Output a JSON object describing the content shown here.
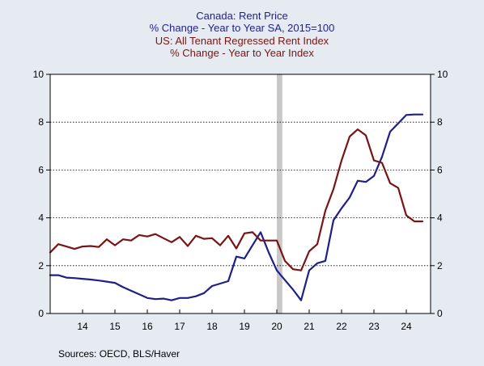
{
  "colors": {
    "background": "#e6ebf1",
    "plot_background": "#ffffff",
    "canada": "#1f1f8a",
    "us": "#7a1414",
    "recession": "#c8c8c8",
    "grid": "#000000"
  },
  "chart_data": {
    "type": "line",
    "titles": [
      {
        "text": "Canada: Rent Price",
        "series": "canada"
      },
      {
        "text": "% Change - Year to Year   SA, 2015=100",
        "series": "canada"
      },
      {
        "text": "US: All Tenant Regressed Rent Index",
        "series": "us"
      },
      {
        "text": "% Change - Year to Year    Index",
        "series": "us"
      }
    ],
    "source": "Sources:  OECD, BLS/Haver",
    "x_range": [
      2013.0,
      2024.75
    ],
    "x_tick_labels": [
      "14",
      "15",
      "16",
      "17",
      "18",
      "19",
      "20",
      "21",
      "22",
      "23",
      "24"
    ],
    "ylim": [
      0,
      10
    ],
    "y_ticks_left": [
      "0",
      "2",
      "4",
      "6",
      "8",
      "10"
    ],
    "y_ticks_right": [
      "0",
      "2",
      "4",
      "6",
      "8",
      "10"
    ],
    "grid": "horizontal dotted",
    "recession_band": [
      2020.0,
      2020.17
    ],
    "series": [
      {
        "key": "canada",
        "x": [
          2013.0,
          2013.25,
          2013.5,
          2013.75,
          2014.0,
          2014.25,
          2014.5,
          2014.75,
          2015.0,
          2015.25,
          2015.5,
          2015.75,
          2016.0,
          2016.25,
          2016.5,
          2016.75,
          2017.0,
          2017.25,
          2017.5,
          2017.75,
          2018.0,
          2018.25,
          2018.5,
          2018.75,
          2019.0,
          2019.25,
          2019.5,
          2019.75,
          2020.0,
          2020.25,
          2020.5,
          2020.75,
          2021.0,
          2021.25,
          2021.5,
          2021.75,
          2022.0,
          2022.25,
          2022.5,
          2022.75,
          2023.0,
          2023.25,
          2023.5,
          2023.75,
          2024.0,
          2024.25,
          2024.5
        ],
        "values": [
          1.6,
          1.6,
          1.5,
          1.48,
          1.45,
          1.42,
          1.38,
          1.33,
          1.28,
          1.1,
          0.95,
          0.8,
          0.65,
          0.6,
          0.62,
          0.55,
          0.65,
          0.65,
          0.72,
          0.85,
          1.15,
          1.25,
          1.35,
          2.38,
          2.3,
          2.85,
          3.4,
          2.55,
          1.8,
          1.4,
          1.0,
          0.55,
          1.8,
          2.1,
          2.2,
          3.9,
          4.4,
          4.85,
          5.55,
          5.5,
          5.75,
          6.55,
          7.6,
          7.95,
          8.3,
          8.32,
          8.32
        ]
      },
      {
        "key": "us",
        "x": [
          2013.0,
          2013.25,
          2013.5,
          2013.75,
          2014.0,
          2014.25,
          2014.5,
          2014.75,
          2015.0,
          2015.25,
          2015.5,
          2015.75,
          2016.0,
          2016.25,
          2016.5,
          2016.75,
          2017.0,
          2017.25,
          2017.5,
          2017.75,
          2018.0,
          2018.25,
          2018.5,
          2018.75,
          2019.0,
          2019.25,
          2019.5,
          2019.75,
          2020.0,
          2020.25,
          2020.5,
          2020.75,
          2021.0,
          2021.25,
          2021.5,
          2021.75,
          2022.0,
          2022.25,
          2022.5,
          2022.75,
          2023.0,
          2023.25,
          2023.5,
          2023.75,
          2024.0,
          2024.25,
          2024.5
        ],
        "values": [
          2.55,
          2.9,
          2.8,
          2.7,
          2.8,
          2.82,
          2.78,
          3.1,
          2.85,
          3.1,
          3.05,
          3.28,
          3.22,
          3.32,
          3.15,
          2.98,
          3.2,
          2.82,
          3.25,
          3.12,
          3.15,
          2.85,
          3.25,
          2.72,
          3.35,
          3.4,
          3.05,
          3.05,
          3.05,
          2.2,
          1.85,
          1.8,
          2.6,
          2.9,
          4.3,
          5.2,
          6.4,
          7.4,
          7.7,
          7.45,
          6.4,
          6.3,
          5.45,
          5.25,
          4.1,
          3.85,
          3.85
        ]
      }
    ]
  }
}
